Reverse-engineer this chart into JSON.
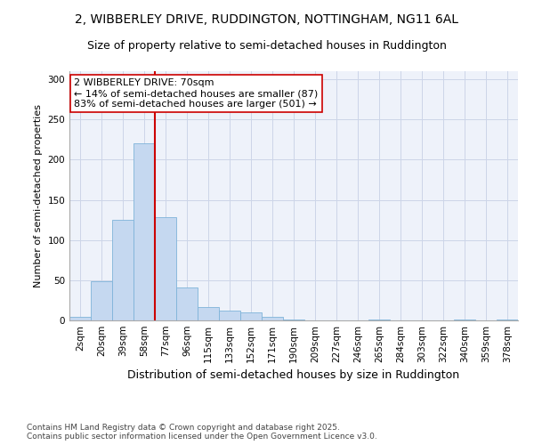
{
  "title_line1": "2, WIBBERLEY DRIVE, RUDDINGTON, NOTTINGHAM, NG11 6AL",
  "title_line2": "Size of property relative to semi-detached houses in Ruddington",
  "xlabel": "Distribution of semi-detached houses by size in Ruddington",
  "ylabel": "Number of semi-detached properties",
  "categories": [
    "2sqm",
    "20sqm",
    "39sqm",
    "58sqm",
    "77sqm",
    "96sqm",
    "115sqm",
    "133sqm",
    "152sqm",
    "171sqm",
    "190sqm",
    "209sqm",
    "227sqm",
    "246sqm",
    "265sqm",
    "284sqm",
    "303sqm",
    "322sqm",
    "340sqm",
    "359sqm",
    "378sqm"
  ],
  "values": [
    4,
    49,
    125,
    220,
    128,
    41,
    17,
    12,
    10,
    4,
    1,
    0,
    0,
    0,
    1,
    0,
    0,
    0,
    1,
    0,
    1
  ],
  "bar_color": "#c5d8f0",
  "bar_edge_color": "#7fb3d9",
  "vline_color": "#cc0000",
  "annotation_text": "2 WIBBERLEY DRIVE: 70sqm\n← 14% of semi-detached houses are smaller (87)\n83% of semi-detached houses are larger (501) →",
  "annotation_box_color": "#ffffff",
  "annotation_box_edge": "#cc0000",
  "annotation_fontsize": 8,
  "ylim": [
    0,
    310
  ],
  "yticks": [
    0,
    50,
    100,
    150,
    200,
    250,
    300
  ],
  "footer_text": "Contains HM Land Registry data © Crown copyright and database right 2025.\nContains public sector information licensed under the Open Government Licence v3.0.",
  "grid_color": "#ccd5e8",
  "bg_color": "#eef2fa",
  "title_fontsize": 10,
  "subtitle_fontsize": 9,
  "ylabel_fontsize": 8,
  "xlabel_fontsize": 9,
  "tick_fontsize": 7.5
}
